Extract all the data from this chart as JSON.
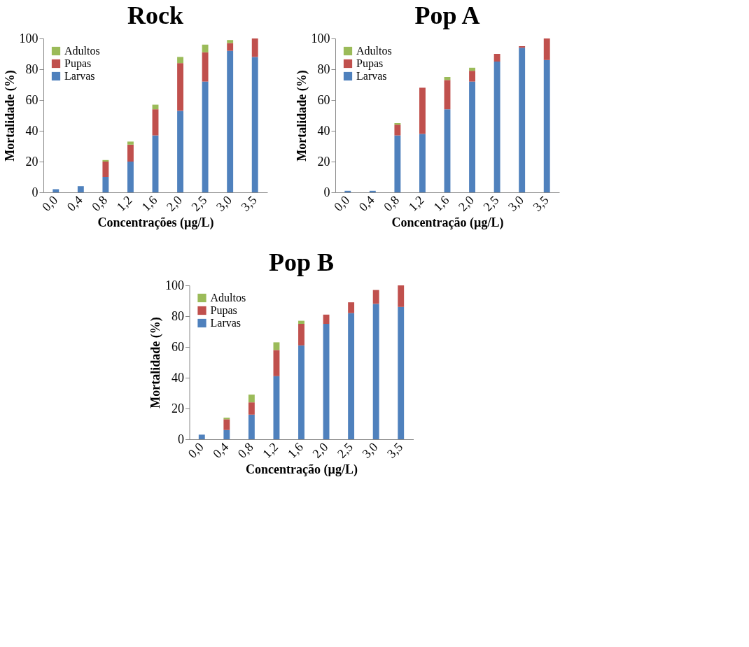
{
  "chart_data": [
    {
      "type": "bar",
      "title": "Rock",
      "xlabel": "Concentrações (µg/L)",
      "ylabel": "Mortalidade (%)",
      "categories": [
        "0,0",
        "0,4",
        "0,8",
        "1,2",
        "1,6",
        "2,0",
        "2,5",
        "3,0",
        "3,5"
      ],
      "stacked": true,
      "ylim": [
        0,
        100
      ],
      "yticks": [
        0,
        20,
        40,
        60,
        80,
        100
      ],
      "grid": false,
      "legend": "top left",
      "series": [
        {
          "name": "Larvas",
          "color": "#4f81bd",
          "values": [
            2,
            4,
            10,
            20,
            37,
            53,
            72,
            92,
            88
          ]
        },
        {
          "name": "Pupas",
          "color": "#c0504d",
          "values": [
            0,
            0,
            10,
            11,
            17,
            31,
            19,
            5,
            12
          ]
        },
        {
          "name": "Adultos",
          "color": "#9bbb59",
          "values": [
            0,
            0,
            1,
            2,
            3,
            4,
            5,
            2,
            0
          ]
        }
      ]
    },
    {
      "type": "bar",
      "title": "Pop A",
      "xlabel": "Concentração (µg/L)",
      "ylabel": "Mortalidade (%)",
      "categories": [
        "0,0",
        "0,4",
        "0,8",
        "1,2",
        "1,6",
        "2,0",
        "2,5",
        "3,0",
        "3,5"
      ],
      "stacked": true,
      "ylim": [
        0,
        100
      ],
      "yticks": [
        0,
        20,
        40,
        60,
        80,
        100
      ],
      "grid": false,
      "legend": "top left",
      "series": [
        {
          "name": "Larvas",
          "color": "#4f81bd",
          "values": [
            1,
            1,
            37,
            38,
            54,
            72,
            85,
            94,
            86
          ]
        },
        {
          "name": "Pupas",
          "color": "#c0504d",
          "values": [
            0,
            0,
            7,
            30,
            19,
            7,
            5,
            1,
            14
          ]
        },
        {
          "name": "Adultos",
          "color": "#9bbb59",
          "values": [
            0,
            0,
            1,
            0,
            2,
            2,
            0,
            0,
            0
          ]
        }
      ]
    },
    {
      "type": "bar",
      "title": "Pop B",
      "xlabel": "Concentração (µg/L)",
      "ylabel": "Mortalidade (%)",
      "categories": [
        "0,0",
        "0,4",
        "0,8",
        "1,2",
        "1,6",
        "2,0",
        "2,5",
        "3,0",
        "3,5"
      ],
      "stacked": true,
      "ylim": [
        0,
        100
      ],
      "yticks": [
        0,
        20,
        40,
        60,
        80,
        100
      ],
      "grid": false,
      "legend": "top left",
      "series": [
        {
          "name": "Larvas",
          "color": "#4f81bd",
          "values": [
            3,
            6,
            16,
            41,
            61,
            75,
            82,
            88,
            86
          ]
        },
        {
          "name": "Pupas",
          "color": "#c0504d",
          "values": [
            0,
            7,
            8,
            17,
            14,
            6,
            7,
            9,
            14
          ]
        },
        {
          "name": "Adultos",
          "color": "#9bbb59",
          "values": [
            0,
            1,
            5,
            5,
            2,
            0,
            0,
            0,
            0
          ]
        }
      ]
    }
  ]
}
